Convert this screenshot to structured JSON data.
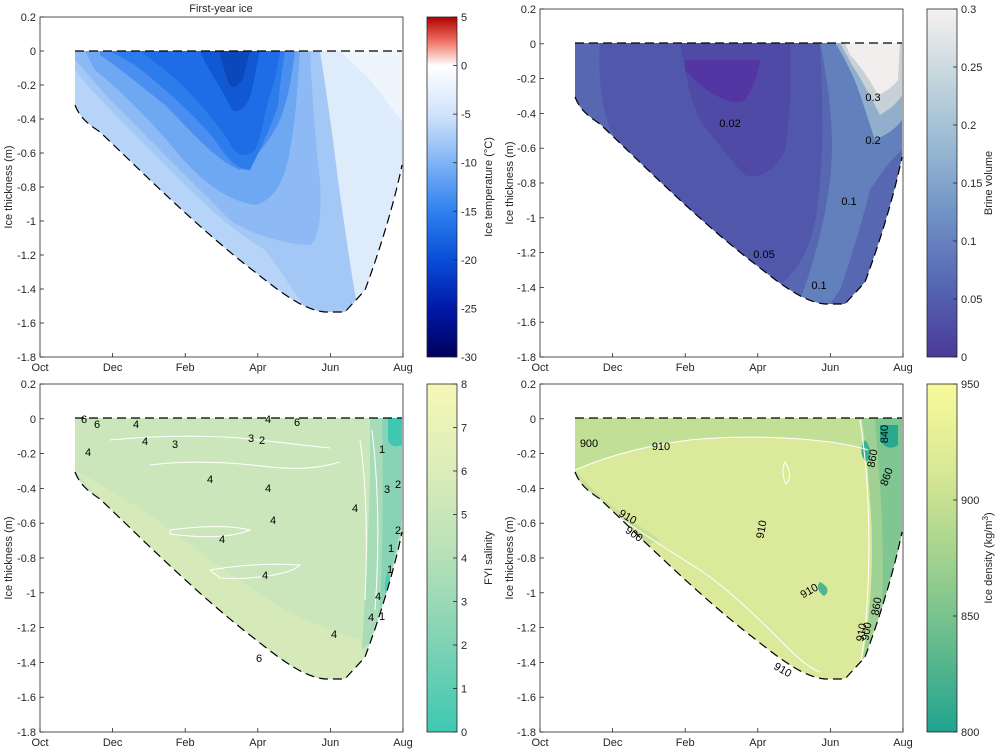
{
  "panels": [
    {
      "id": "temperature",
      "title": "First-year ice",
      "ylabel": "Ice thickness (m)",
      "x_ticks": [
        "Oct",
        "Dec",
        "Feb",
        "Apr",
        "Jun",
        "Aug"
      ],
      "y_ticks": [
        "0.2",
        "0",
        "-0.2",
        "-0.4",
        "-0.6",
        "-0.8",
        "-1",
        "-1.2",
        "-1.4",
        "-1.6",
        "-1.8"
      ],
      "colorbar": {
        "label": "Ice temperature (°C)",
        "ticks": [
          "5",
          "0",
          "-5",
          "-10",
          "-15",
          "-20",
          "-25",
          "-30"
        ],
        "range": [
          -30,
          5
        ],
        "stops": [
          "#00005a",
          "#0033cc",
          "#1a6ff0",
          "#6fa8f4",
          "#cfe2fa",
          "#ffffff",
          "#f7b0a8",
          "#e0352b",
          "#b00000"
        ]
      },
      "contour_labels": []
    },
    {
      "id": "brine",
      "title": "",
      "ylabel": "Ice thickness (m)",
      "x_ticks": [
        "Oct",
        "Dec",
        "Feb",
        "Apr",
        "Jun",
        "Aug"
      ],
      "y_ticks": [
        "0.2",
        "0",
        "-0.2",
        "-0.4",
        "-0.6",
        "-0.8",
        "-1",
        "-1.2",
        "-1.4",
        "-1.6",
        "-1.8"
      ],
      "colorbar": {
        "label": "Brine volume",
        "ticks": [
          "0.3",
          "0.25",
          "0.2",
          "0.15",
          "0.1",
          "0.05",
          "0"
        ],
        "range": [
          0,
          0.3
        ],
        "stops": [
          "#4a3a9a",
          "#5565b2",
          "#6e90c4",
          "#97b8d3",
          "#c4d6dd",
          "#f1eeee"
        ]
      },
      "contour_labels": [
        "0.02",
        "0.3",
        "0.2",
        "0.1",
        "0.05",
        "0.1"
      ]
    },
    {
      "id": "salinity",
      "title": "",
      "ylabel": "Ice thickness (m)",
      "x_ticks": [
        "Oct",
        "Dec",
        "Feb",
        "Apr",
        "Jun",
        "Aug"
      ],
      "y_ticks": [
        "0.2",
        "0",
        "-0.2",
        "-0.4",
        "-0.6",
        "-0.8",
        "-1",
        "-1.2",
        "-1.4",
        "-1.6",
        "-1.8"
      ],
      "colorbar": {
        "label": "FYI salinity",
        "ticks": [
          "8",
          "7",
          "6",
          "5",
          "4",
          "3",
          "2",
          "1",
          "0"
        ],
        "range": [
          0,
          8
        ],
        "stops": [
          "#3ec8b2",
          "#7ed2b4",
          "#b6e0b8",
          "#dcedba",
          "#f5f7b8"
        ]
      },
      "contour_labels": [
        "6",
        "6",
        "4",
        "4",
        "4",
        "3",
        "3",
        "2",
        "4",
        "6",
        "4",
        "4",
        "4",
        "4",
        "4",
        "4",
        "4",
        "1",
        "2",
        "3",
        "2",
        "1",
        "1",
        "4",
        "1",
        "6",
        "4"
      ]
    },
    {
      "id": "density",
      "title": "",
      "ylabel": "Ice thickness (m)",
      "x_ticks": [
        "Oct",
        "Dec",
        "Feb",
        "Apr",
        "Jun",
        "Aug"
      ],
      "y_ticks": [
        "0.2",
        "0",
        "-0.2",
        "-0.4",
        "-0.6",
        "-0.8",
        "-1",
        "-1.2",
        "-1.4",
        "-1.6",
        "-1.8"
      ],
      "colorbar": {
        "label": "Ice density (kg/m",
        "label_sup": "3",
        "label_end": ")",
        "ticks": [
          "950",
          "900",
          "850",
          "800"
        ],
        "range": [
          800,
          950
        ],
        "stops": [
          "#1fa38e",
          "#64bb8d",
          "#a3d28f",
          "#d8e894",
          "#f8fa9a"
        ]
      },
      "contour_labels": [
        "900",
        "910",
        "910",
        "900",
        "910",
        "910",
        "860",
        "860",
        "860",
        "840",
        "910",
        "910",
        "900"
      ]
    }
  ],
  "chart_data": [
    {
      "type": "heatmap",
      "title": "First-year ice",
      "xlabel": "",
      "ylabel": "Ice thickness (m)",
      "x_categories": [
        "Oct",
        "Dec",
        "Feb",
        "Apr",
        "Jun",
        "Aug"
      ],
      "ylim": [
        -1.8,
        0.2
      ],
      "colorbar_label": "Ice temperature (°C)",
      "clim": [
        -30,
        5
      ],
      "ice_bottom_m": [
        [
          0.4,
          -0.33
        ],
        [
          1.5,
          -0.62
        ],
        [
          2.5,
          -0.88
        ],
        [
          3.5,
          -1.22
        ],
        [
          4.5,
          -1.43
        ],
        [
          5.1,
          -1.53
        ],
        [
          5.6,
          -1.53
        ],
        [
          6.0,
          -1.45
        ],
        [
          7.0,
          -0.7
        ]
      ],
      "description_values": {
        "min_temperature_c": -20,
        "surface_snow_free_from": "Jun"
      }
    },
    {
      "type": "heatmap",
      "title": "",
      "xlabel": "",
      "ylabel": "Ice thickness (m)",
      "x_categories": [
        "Oct",
        "Dec",
        "Feb",
        "Apr",
        "Jun",
        "Aug"
      ],
      "ylim": [
        -1.8,
        0.2
      ],
      "colorbar_label": "Brine volume",
      "clim": [
        0,
        0.3
      ],
      "contour_levels": [
        0.02,
        0.05,
        0.1,
        0.2,
        0.3
      ]
    },
    {
      "type": "heatmap",
      "title": "",
      "xlabel": "",
      "ylabel": "Ice thickness (m)",
      "x_categories": [
        "Oct",
        "Dec",
        "Feb",
        "Apr",
        "Jun",
        "Aug"
      ],
      "ylim": [
        -1.8,
        0.2
      ],
      "colorbar_label": "FYI salinity",
      "clim": [
        0,
        8
      ],
      "contour_levels": [
        1,
        2,
        3,
        4,
        6
      ]
    },
    {
      "type": "heatmap",
      "title": "",
      "xlabel": "",
      "ylabel": "Ice thickness (m)",
      "x_categories": [
        "Oct",
        "Dec",
        "Feb",
        "Apr",
        "Jun",
        "Aug"
      ],
      "ylim": [
        -1.8,
        0.2
      ],
      "colorbar_label": "Ice density (kg/m3)",
      "clim": [
        800,
        950
      ],
      "contour_levels": [
        840,
        860,
        900,
        910
      ]
    }
  ]
}
